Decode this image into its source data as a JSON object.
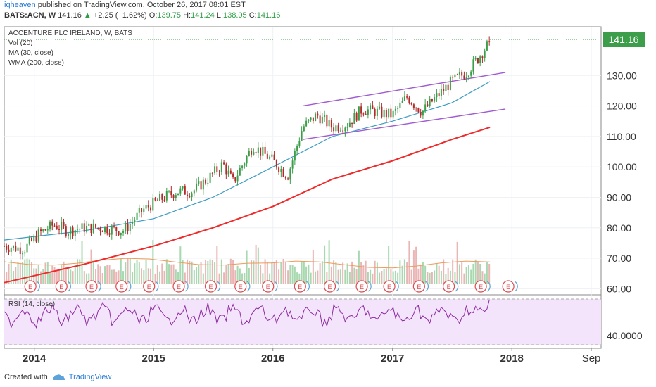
{
  "header": {
    "user": "iqheaven",
    "published_text": " published on TradingView.com, October 26, 2017 08:01 EST",
    "symbol": "BATS:ACN, W",
    "last": "141.16",
    "change": "+2.25 (+1.62%)",
    "o_label": "O:",
    "o_value": "139.75",
    "h_label": "H:",
    "h_value": "141.24",
    "l_label": "L:",
    "l_value": "138.05",
    "c_label": "C:",
    "c_value": "141.16"
  },
  "legend": {
    "title": "ACCENTURE PLC IRELAND, W, BATS",
    "vol": "Vol (20)",
    "ma": "MA (30, close)",
    "wma": "WMA (200, close)"
  },
  "rsi_label": "RSI (14, close)",
  "price_tag": "141.16",
  "footer": {
    "created": "Created with",
    "brand": "TradingView"
  },
  "colors": {
    "up": "#3c9e4a",
    "down": "#b22a2a",
    "ma": "#3d9bc4",
    "wma": "#ee2a2a",
    "channel": "#a05bd0",
    "rsi_line": "#8b2a9e",
    "rsi_band": "#f3e4fb",
    "price_tag_bg": "#3c9e4a",
    "vol_up": "#a8d8b0",
    "vol_down": "#eab5b5",
    "vol_ma": "#ef9a5a",
    "earnings": "#e0484d"
  },
  "chart_data": {
    "type": "candlestick",
    "ylim": [
      58,
      146
    ],
    "yticks": [
      60,
      70,
      80,
      90,
      100,
      110,
      120,
      130
    ],
    "ytick_labels": [
      "60.00",
      "70.00",
      "80.00",
      "90.00",
      "100.00",
      "110.00",
      "120.00",
      "130.00"
    ],
    "x_labels": [
      "2014",
      "2015",
      "2016",
      "2017",
      "2018",
      "Sep"
    ],
    "rsi_tick_label": "40.0000",
    "series": [
      {
        "name": "Close",
        "points": [
          [
            "2013-10-01",
            74
          ],
          [
            "2013-12-01",
            73
          ],
          [
            "2014-01-15",
            78
          ],
          [
            "2014-03-01",
            81
          ],
          [
            "2014-04-15",
            79
          ],
          [
            "2014-06-01",
            80
          ],
          [
            "2014-08-01",
            80
          ],
          [
            "2014-10-01",
            79
          ],
          [
            "2014-12-01",
            86
          ],
          [
            "2015-02-01",
            90
          ],
          [
            "2015-03-15",
            92
          ],
          [
            "2015-05-01",
            92
          ],
          [
            "2015-06-15",
            96
          ],
          [
            "2015-08-01",
            101
          ],
          [
            "2015-09-01",
            95
          ],
          [
            "2015-11-01",
            107
          ],
          [
            "2016-01-01",
            102
          ],
          [
            "2016-02-15",
            97
          ],
          [
            "2016-04-01",
            113
          ],
          [
            "2016-05-15",
            117
          ],
          [
            "2016-07-01",
            113
          ],
          [
            "2016-08-15",
            114
          ],
          [
            "2016-10-01",
            119
          ],
          [
            "2016-11-15",
            118
          ],
          [
            "2017-01-01",
            117
          ],
          [
            "2017-02-15",
            123
          ],
          [
            "2017-04-01",
            118
          ],
          [
            "2017-05-15",
            123
          ],
          [
            "2017-07-01",
            128
          ],
          [
            "2017-08-15",
            131
          ],
          [
            "2017-09-15",
            135
          ],
          [
            "2017-10-26",
            141.16
          ]
        ]
      },
      {
        "name": "MA (30, close)",
        "points": [
          [
            "2013-10-01",
            76
          ],
          [
            "2014-06-01",
            79
          ],
          [
            "2015-01-01",
            83
          ],
          [
            "2015-07-01",
            90
          ],
          [
            "2016-01-01",
            100
          ],
          [
            "2016-07-01",
            110
          ],
          [
            "2017-01-01",
            115
          ],
          [
            "2017-07-01",
            121
          ],
          [
            "2017-10-26",
            128
          ]
        ]
      },
      {
        "name": "WMA (200, close)",
        "points": [
          [
            "2013-10-01",
            62
          ],
          [
            "2014-06-01",
            68
          ],
          [
            "2015-01-01",
            74
          ],
          [
            "2015-07-01",
            80
          ],
          [
            "2016-01-01",
            87
          ],
          [
            "2016-07-01",
            96
          ],
          [
            "2017-01-01",
            102
          ],
          [
            "2017-07-01",
            109
          ],
          [
            "2017-10-26",
            113
          ]
        ]
      }
    ],
    "channel": [
      {
        "from": [
          "2016-04-01",
          120
        ],
        "to": [
          "2017-10-26",
          131
        ]
      },
      {
        "from": [
          "2016-04-01",
          109
        ],
        "to": [
          "2017-10-26",
          119
        ]
      }
    ],
    "earnings_dates": [
      "2013-12-20",
      "2014-03-25",
      "2014-06-25",
      "2014-09-25",
      "2014-12-18",
      "2015-03-19",
      "2015-06-25",
      "2015-09-24",
      "2015-12-17",
      "2016-03-24",
      "2016-06-23",
      "2016-09-29",
      "2016-12-22",
      "2017-03-23",
      "2017-06-22",
      "2017-09-28",
      "2017-12-21"
    ],
    "rsi_ylim": [
      10,
      90
    ]
  }
}
